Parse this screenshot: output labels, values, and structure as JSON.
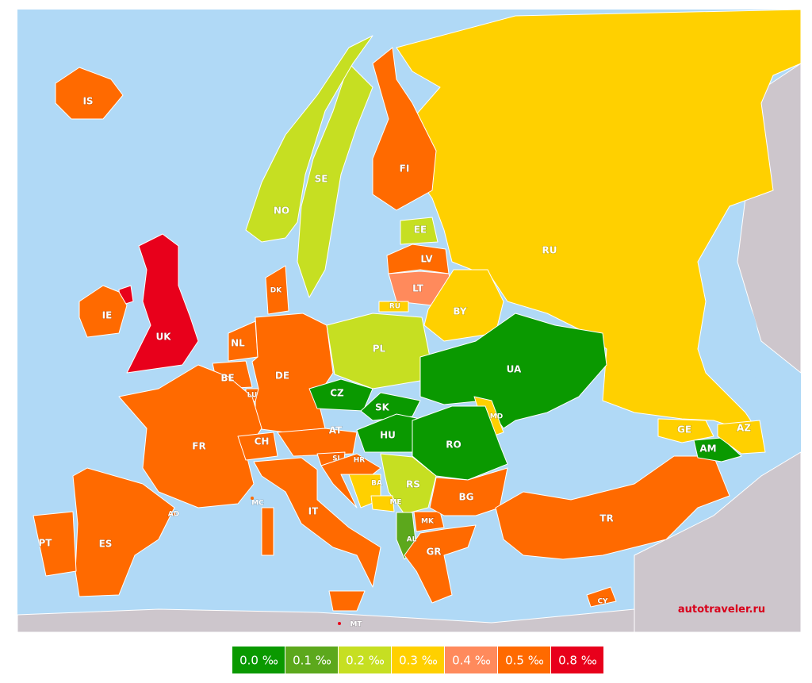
{
  "watermark": "autotraveler.ru",
  "legend": [
    {
      "value": 0.0,
      "label": "0.0 ‰",
      "color": "#0a9900"
    },
    {
      "value": 0.1,
      "label": "0.1 ‰",
      "color": "#5ca81c"
    },
    {
      "value": 0.2,
      "label": "0.2 ‰",
      "color": "#c6df22"
    },
    {
      "value": 0.3,
      "label": "0.3 ‰",
      "color": "#ffd000"
    },
    {
      "value": 0.4,
      "label": "0.4 ‰",
      "color": "#ff8a5c"
    },
    {
      "value": 0.5,
      "label": "0.5 ‰",
      "color": "#ff6a00"
    },
    {
      "value": 0.8,
      "label": "0.8 ‰",
      "color": "#e8001b"
    }
  ],
  "countries": [
    {
      "code": "RU",
      "value": 0.3
    },
    {
      "code": "FI",
      "value": 0.5
    },
    {
      "code": "SE",
      "value": 0.2
    },
    {
      "code": "NO",
      "value": 0.2
    },
    {
      "code": "IS",
      "value": 0.5
    },
    {
      "code": "EE",
      "value": 0.2
    },
    {
      "code": "LV",
      "value": 0.5
    },
    {
      "code": "LT",
      "value": 0.4
    },
    {
      "code": "RU",
      "value": 0.3
    },
    {
      "code": "BY",
      "value": 0.3
    },
    {
      "code": "UK",
      "value": 0.8
    },
    {
      "code": "IE",
      "value": 0.5
    },
    {
      "code": "DK",
      "value": 0.5
    },
    {
      "code": "NL",
      "value": 0.5
    },
    {
      "code": "BE",
      "value": 0.5
    },
    {
      "code": "LU",
      "value": 0.5
    },
    {
      "code": "DE",
      "value": 0.5
    },
    {
      "code": "PL",
      "value": 0.2
    },
    {
      "code": "CZ",
      "value": 0.0
    },
    {
      "code": "SK",
      "value": 0.0
    },
    {
      "code": "HU",
      "value": 0.0
    },
    {
      "code": "UA",
      "value": 0.0
    },
    {
      "code": "MD",
      "value": 0.3
    },
    {
      "code": "RO",
      "value": 0.0
    },
    {
      "code": "FR",
      "value": 0.5
    },
    {
      "code": "CH",
      "value": 0.5
    },
    {
      "code": "AT",
      "value": 0.5
    },
    {
      "code": "SI",
      "value": 0.5
    },
    {
      "code": "HR",
      "value": 0.5
    },
    {
      "code": "BA",
      "value": 0.3
    },
    {
      "code": "RS",
      "value": 0.2
    },
    {
      "code": "ME",
      "value": 0.3
    },
    {
      "code": "AL",
      "value": 0.1
    },
    {
      "code": "MK",
      "value": 0.5
    },
    {
      "code": "BG",
      "value": 0.5
    },
    {
      "code": "GR",
      "value": 0.5
    },
    {
      "code": "TR",
      "value": 0.5
    },
    {
      "code": "GE",
      "value": 0.3
    },
    {
      "code": "AM",
      "value": 0.0
    },
    {
      "code": "AZ",
      "value": 0.3
    },
    {
      "code": "IT",
      "value": 0.5
    },
    {
      "code": "ES",
      "value": 0.5
    },
    {
      "code": "PT",
      "value": 0.5
    },
    {
      "code": "CY",
      "value": 0.5
    },
    {
      "code": "MT",
      "value": 0.8
    },
    {
      "code": "AD",
      "value": 0.5
    },
    {
      "code": "MC",
      "value": 0.5
    }
  ]
}
